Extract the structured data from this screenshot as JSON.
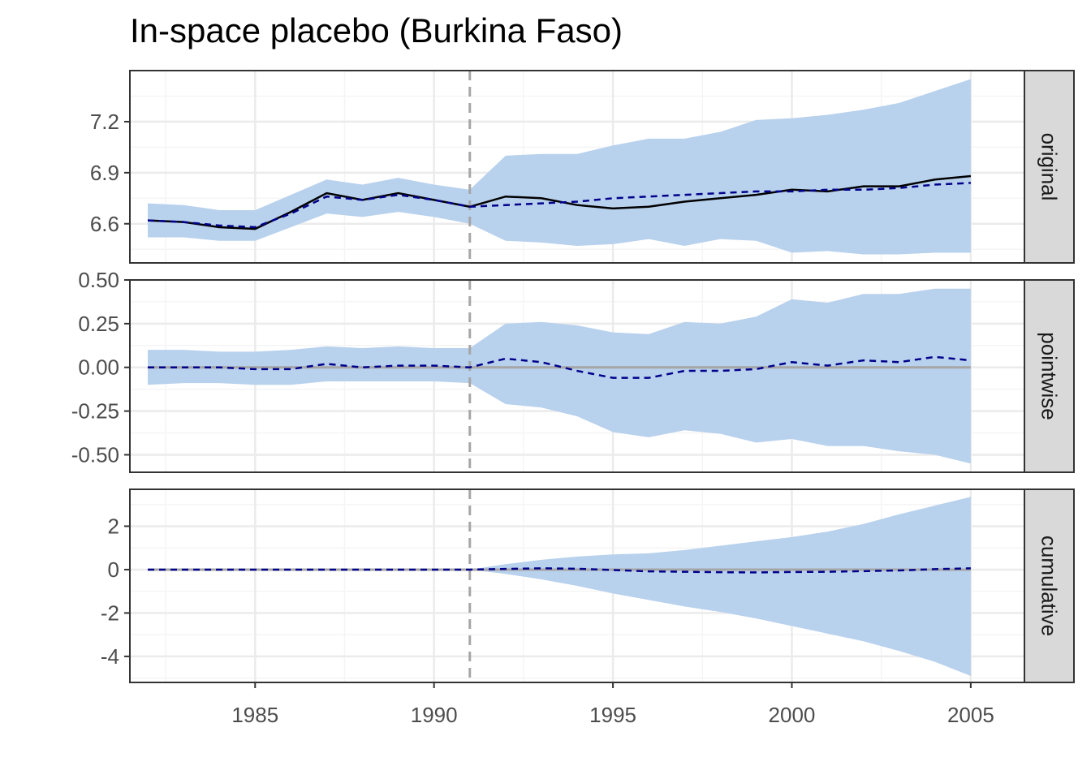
{
  "chart_data": {
    "type": "line",
    "title": "In-space placebo (Burkina Faso)",
    "xlabel": "",
    "ylabel": "",
    "xlim": [
      1981.5,
      2006.5
    ],
    "x_ticks": [
      1985,
      1990,
      1995,
      2000,
      2005
    ],
    "x_tick_labels": [
      "1985",
      "1990",
      "1995",
      "2000",
      "2005"
    ],
    "intervention_x": 1991,
    "grid": true,
    "legend": "none",
    "colors": {
      "band": "#b8d1ed",
      "actual_line": "#000000",
      "predicted_line": "#00008b",
      "zero_line": "#a6a6a6",
      "intervention_line": "#a6a6a6",
      "grid_major": "#ebebeb",
      "grid_minor": "#f5f5f5",
      "strip_fill": "#d9d9d9",
      "panel_border": "#333333"
    },
    "x": [
      1982,
      1983,
      1984,
      1985,
      1986,
      1987,
      1988,
      1989,
      1990,
      1991,
      1992,
      1993,
      1994,
      1995,
      1996,
      1997,
      1998,
      1999,
      2000,
      2001,
      2002,
      2003,
      2004,
      2005
    ],
    "panels": [
      {
        "strip": "original",
        "ylim": [
          6.37,
          7.5
        ],
        "y_ticks": [
          6.6,
          6.9,
          7.2
        ],
        "y_tick_labels": [
          "6.6",
          "6.9",
          "7.2"
        ],
        "series": [
          {
            "kind": "band",
            "lower": [
              6.52,
              6.52,
              6.5,
              6.5,
              6.58,
              6.66,
              6.64,
              6.67,
              6.64,
              6.6,
              6.5,
              6.49,
              6.47,
              6.48,
              6.51,
              6.47,
              6.51,
              6.5,
              6.43,
              6.44,
              6.42,
              6.42,
              6.43,
              6.43
            ],
            "upper": [
              6.72,
              6.71,
              6.68,
              6.68,
              6.77,
              6.86,
              6.83,
              6.87,
              6.83,
              6.8,
              7.0,
              7.01,
              7.01,
              7.06,
              7.1,
              7.1,
              7.14,
              7.21,
              7.22,
              7.24,
              7.27,
              7.31,
              7.38,
              7.45
            ]
          },
          {
            "kind": "actual",
            "values": [
              6.62,
              6.61,
              6.58,
              6.57,
              6.67,
              6.78,
              6.74,
              6.78,
              6.74,
              6.7,
              6.76,
              6.75,
              6.71,
              6.69,
              6.7,
              6.73,
              6.75,
              6.77,
              6.8,
              6.79,
              6.82,
              6.82,
              6.86,
              6.88
            ]
          },
          {
            "kind": "predicted",
            "values": [
              6.62,
              6.61,
              6.59,
              6.58,
              6.66,
              6.76,
              6.74,
              6.77,
              6.74,
              6.7,
              6.71,
              6.72,
              6.73,
              6.75,
              6.76,
              6.77,
              6.78,
              6.79,
              6.79,
              6.8,
              6.8,
              6.81,
              6.83,
              6.84
            ]
          }
        ]
      },
      {
        "strip": "pointwise",
        "ylim": [
          -0.6,
          0.5
        ],
        "y_ticks": [
          -0.5,
          -0.25,
          0.0,
          0.25,
          0.5
        ],
        "y_tick_labels": [
          "-0.50",
          "-0.25",
          "0.00",
          "0.25",
          "0.50"
        ],
        "zero_line": true,
        "series": [
          {
            "kind": "band",
            "lower": [
              -0.1,
              -0.09,
              -0.09,
              -0.1,
              -0.1,
              -0.08,
              -0.08,
              -0.08,
              -0.08,
              -0.09,
              -0.21,
              -0.23,
              -0.28,
              -0.37,
              -0.4,
              -0.36,
              -0.38,
              -0.43,
              -0.41,
              -0.45,
              -0.45,
              -0.48,
              -0.5,
              -0.55
            ],
            "upper": [
              0.1,
              0.1,
              0.09,
              0.09,
              0.1,
              0.12,
              0.11,
              0.12,
              0.11,
              0.11,
              0.25,
              0.26,
              0.24,
              0.2,
              0.19,
              0.26,
              0.25,
              0.29,
              0.39,
              0.37,
              0.42,
              0.42,
              0.45,
              0.45
            ]
          },
          {
            "kind": "predicted",
            "values": [
              0.0,
              0.0,
              0.0,
              -0.01,
              -0.01,
              0.02,
              0.0,
              0.01,
              0.01,
              0.0,
              0.05,
              0.03,
              -0.02,
              -0.06,
              -0.06,
              -0.02,
              -0.02,
              -0.01,
              0.03,
              0.01,
              0.04,
              0.03,
              0.06,
              0.04
            ]
          }
        ]
      },
      {
        "strip": "cumulative",
        "ylim": [
          -5.2,
          3.7
        ],
        "y_ticks": [
          -4,
          -2,
          0,
          2
        ],
        "y_tick_labels": [
          "-4",
          "-2",
          "0",
          "2"
        ],
        "zero_line": true,
        "series": [
          {
            "kind": "band",
            "lower": [
              0,
              0,
              0,
              0,
              0,
              0,
              0,
              0,
              0,
              0,
              -0.2,
              -0.45,
              -0.75,
              -1.1,
              -1.4,
              -1.7,
              -1.95,
              -2.25,
              -2.6,
              -2.95,
              -3.3,
              -3.75,
              -4.25,
              -4.9
            ],
            "upper": [
              0,
              0,
              0,
              0,
              0,
              0,
              0,
              0,
              0,
              0,
              0.25,
              0.45,
              0.6,
              0.7,
              0.75,
              0.9,
              1.1,
              1.3,
              1.5,
              1.75,
              2.1,
              2.55,
              2.95,
              3.35
            ]
          },
          {
            "kind": "predicted",
            "values": [
              0,
              0,
              0,
              0,
              0,
              0,
              0,
              0,
              0,
              0,
              0.03,
              0.06,
              0.04,
              -0.02,
              -0.08,
              -0.1,
              -0.12,
              -0.13,
              -0.11,
              -0.1,
              -0.07,
              -0.04,
              0.02,
              0.06
            ]
          }
        ]
      }
    ]
  }
}
